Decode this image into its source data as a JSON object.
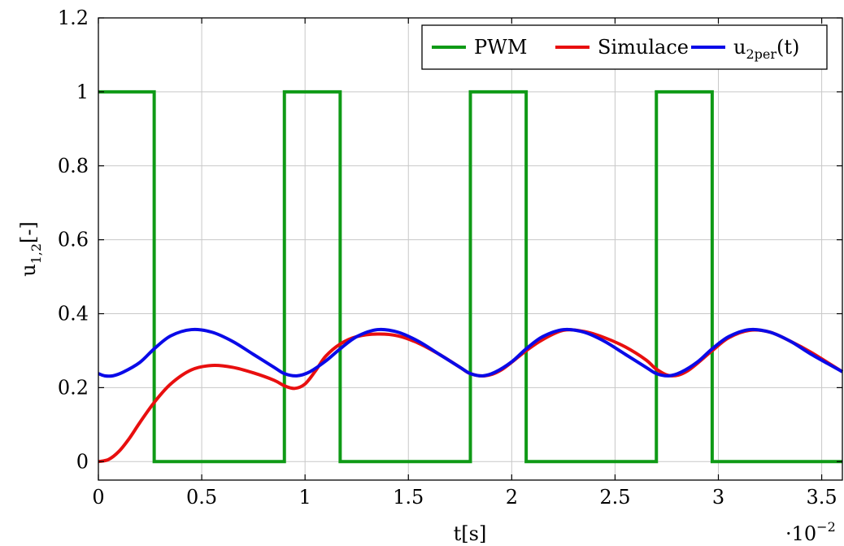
{
  "chart_data": {
    "type": "line",
    "title": "",
    "xlabel": "t[s]",
    "ylabel_main": "u",
    "ylabel_sub": "1,2",
    "ylabel_unit": "[-]",
    "x_multiplier_base": "·10",
    "x_multiplier_exp": "−2",
    "xlim": [
      0,
      3.6
    ],
    "ylim": [
      -0.05,
      1.2
    ],
    "x_ticks": [
      0,
      0.5,
      1,
      1.5,
      2,
      2.5,
      3,
      3.5
    ],
    "x_tick_labels": [
      "0",
      "0.5",
      "1",
      "1.5",
      "2",
      "2.5",
      "3",
      "3.5"
    ],
    "y_ticks": [
      0,
      0.2,
      0.4,
      0.6,
      0.8,
      1,
      1.2
    ],
    "y_tick_labels": [
      "0",
      "0.2",
      "0.4",
      "0.6",
      "0.8",
      "1",
      "1.2"
    ],
    "grid": true,
    "legend_position": "top-right",
    "series": [
      {
        "name": "PWM",
        "color": "#0f9a16",
        "x": [
          0,
          0.27,
          0.27,
          0.9,
          0.9,
          1.17,
          1.17,
          1.8,
          1.8,
          2.07,
          2.07,
          2.7,
          2.7,
          2.97,
          2.97,
          3.6
        ],
        "y": [
          1,
          1,
          0,
          0,
          1,
          1,
          0,
          0,
          1,
          1,
          0,
          0,
          1,
          1,
          0,
          0
        ]
      },
      {
        "name": "Simulace",
        "color": "#e80f0f",
        "x": [
          0,
          0.05,
          0.1,
          0.15,
          0.2,
          0.27,
          0.35,
          0.45,
          0.55,
          0.65,
          0.75,
          0.85,
          0.9,
          0.95,
          1.0,
          1.05,
          1.1,
          1.17,
          1.25,
          1.35,
          1.45,
          1.55,
          1.65,
          1.75,
          1.8,
          1.87,
          1.95,
          2.07,
          2.15,
          2.25,
          2.35,
          2.45,
          2.55,
          2.65,
          2.7,
          2.77,
          2.85,
          2.97,
          3.05,
          3.15,
          3.25,
          3.35,
          3.45,
          3.6
        ],
        "y": [
          0,
          0.006,
          0.028,
          0.063,
          0.105,
          0.16,
          0.21,
          0.248,
          0.26,
          0.255,
          0.24,
          0.22,
          0.205,
          0.198,
          0.21,
          0.245,
          0.285,
          0.318,
          0.338,
          0.345,
          0.34,
          0.32,
          0.29,
          0.255,
          0.238,
          0.232,
          0.248,
          0.3,
          0.33,
          0.355,
          0.352,
          0.335,
          0.31,
          0.275,
          0.25,
          0.232,
          0.245,
          0.3,
          0.335,
          0.355,
          0.35,
          0.325,
          0.295,
          0.243
        ]
      },
      {
        "name": "u2per(t)",
        "name_main": "u",
        "name_sub": "2per",
        "name_tail": "(t)",
        "color": "#0a0ae8",
        "x": [
          0,
          0.03,
          0.07,
          0.12,
          0.2,
          0.27,
          0.35,
          0.45,
          0.55,
          0.65,
          0.75,
          0.85,
          0.9,
          0.96,
          1.02,
          1.1,
          1.17,
          1.25,
          1.35,
          1.45,
          1.55,
          1.65,
          1.75,
          1.8,
          1.86,
          1.92,
          2.0,
          2.07,
          2.15,
          2.25,
          2.35,
          2.45,
          2.55,
          2.65,
          2.7,
          2.76,
          2.82,
          2.9,
          2.97,
          3.05,
          3.15,
          3.25,
          3.35,
          3.45,
          3.6
        ],
        "y": [
          0.238,
          0.232,
          0.232,
          0.242,
          0.268,
          0.305,
          0.34,
          0.357,
          0.35,
          0.325,
          0.29,
          0.255,
          0.238,
          0.232,
          0.242,
          0.272,
          0.305,
          0.338,
          0.357,
          0.35,
          0.325,
          0.29,
          0.255,
          0.238,
          0.232,
          0.242,
          0.27,
          0.305,
          0.338,
          0.357,
          0.35,
          0.325,
          0.29,
          0.255,
          0.238,
          0.232,
          0.242,
          0.27,
          0.305,
          0.338,
          0.357,
          0.35,
          0.325,
          0.29,
          0.243
        ]
      }
    ]
  }
}
